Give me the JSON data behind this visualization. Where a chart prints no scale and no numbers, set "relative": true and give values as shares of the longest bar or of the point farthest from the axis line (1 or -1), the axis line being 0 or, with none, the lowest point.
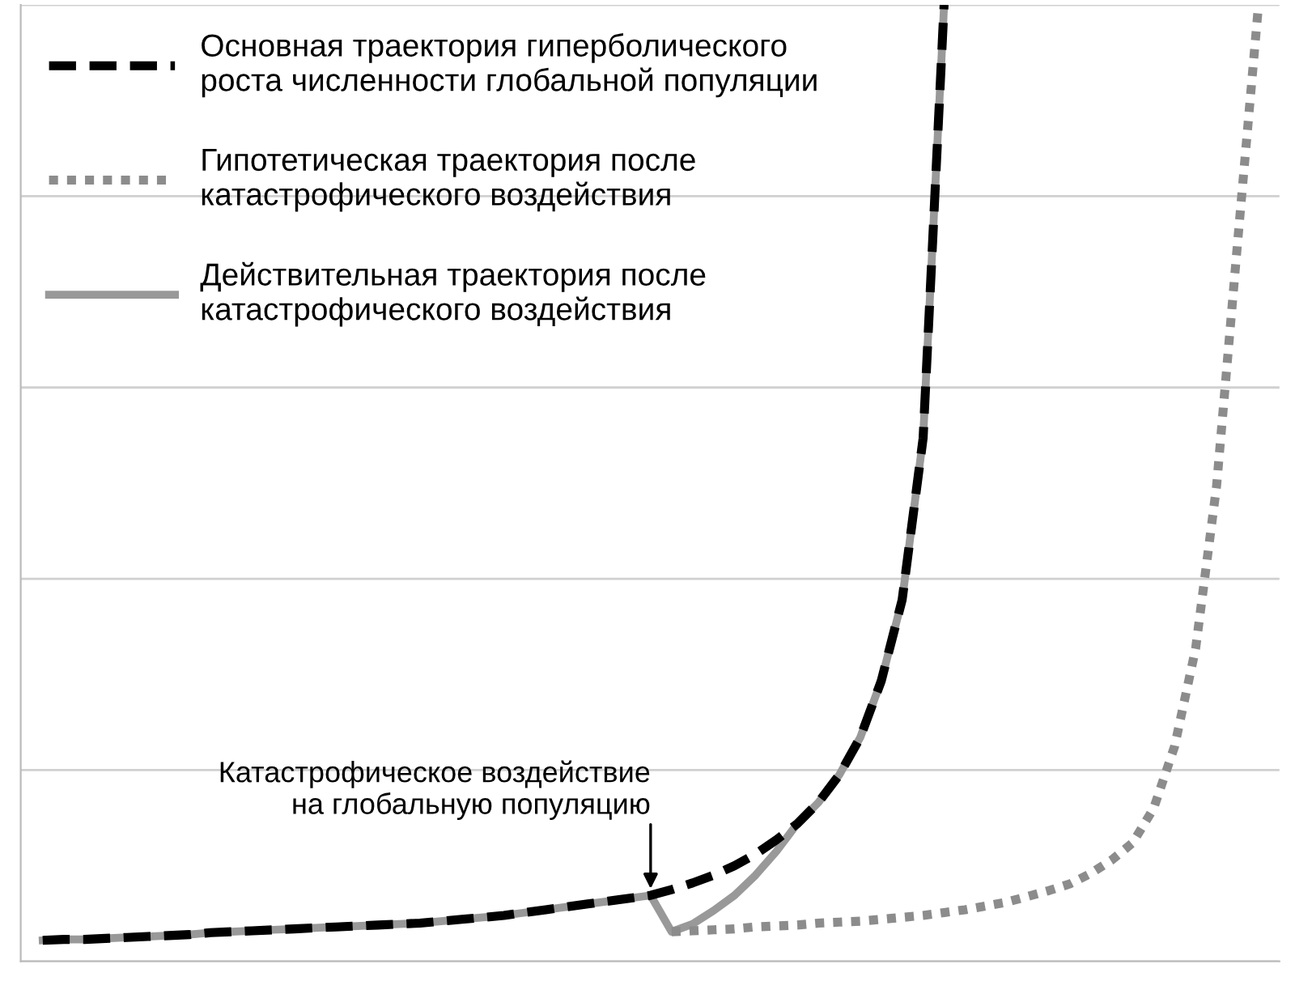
{
  "chart_data": {
    "type": "line",
    "relative": true,
    "grid": "y",
    "legend": "top left",
    "categories": [
      null,
      null,
      null,
      null,
      null,
      null,
      null,
      null,
      null,
      null,
      null,
      null,
      null,
      null,
      null,
      null,
      null,
      null,
      null,
      null,
      null,
      null,
      null,
      null,
      null,
      null,
      null,
      null,
      null,
      null,
      null,
      null,
      null,
      null,
      null,
      null,
      null,
      null,
      null,
      null,
      null,
      null,
      null,
      null,
      null,
      null,
      null,
      null,
      null,
      null,
      null,
      null,
      null,
      null,
      null,
      null,
      null,
      null,
      null,
      null,
      null
    ],
    "series": [
      {
        "name": "Действительная траектория после\nкатастрофического воздействия",
        "color": "#999999",
        "line_style": "solid",
        "values": [
          null,
          0.022,
          0.023,
          0.023,
          0.024,
          0.025,
          0.026,
          0.027,
          0.028,
          0.03,
          0.031,
          0.032,
          0.033,
          0.034,
          0.035,
          0.036,
          0.037,
          0.038,
          0.039,
          0.04,
          0.042,
          0.044,
          0.046,
          0.048,
          0.051,
          0.054,
          0.057,
          0.06,
          0.063,
          0.066,
          0.069,
          0.031,
          0.039,
          0.053,
          0.069,
          0.09,
          0.115,
          0.144,
          0.166,
          0.195,
          0.234,
          0.293,
          0.378,
          0.547,
          1.0,
          null,
          null,
          null,
          null,
          null,
          null,
          null,
          null,
          null,
          null,
          null,
          null,
          null,
          null,
          null,
          null
        ]
      },
      {
        "name": "Гипотетическая траектория после\nкатастрофического воздействия",
        "color": "#8c8c8c",
        "line_style": "dotted",
        "values": [
          null,
          null,
          null,
          null,
          null,
          null,
          null,
          null,
          null,
          null,
          null,
          null,
          null,
          null,
          null,
          null,
          null,
          null,
          null,
          null,
          null,
          null,
          null,
          null,
          null,
          null,
          null,
          null,
          null,
          null,
          null,
          0.031,
          0.032,
          0.033,
          0.034,
          0.036,
          0.037,
          0.038,
          0.04,
          0.041,
          0.042,
          0.044,
          0.046,
          0.048,
          0.051,
          0.054,
          0.058,
          0.062,
          0.068,
          0.074,
          0.081,
          0.092,
          0.106,
          0.124,
          0.16,
          0.225,
          0.327,
          0.497,
          0.751,
          1.0,
          null
        ]
      },
      {
        "name": "Основная траектория гиперболического\nроста численности глобальной популяции",
        "color": "#000000",
        "line_style": "dashed",
        "values": [
          null,
          0.022,
          0.023,
          0.023,
          0.024,
          0.025,
          0.026,
          0.027,
          0.028,
          0.03,
          0.031,
          0.032,
          0.033,
          0.034,
          0.035,
          0.036,
          0.037,
          0.038,
          0.039,
          0.04,
          0.042,
          0.044,
          0.046,
          0.048,
          0.051,
          0.054,
          0.057,
          0.06,
          0.063,
          0.066,
          0.069,
          0.075,
          0.082,
          0.09,
          0.1,
          0.112,
          0.127,
          0.144,
          0.166,
          0.195,
          0.234,
          0.293,
          0.378,
          0.547,
          1.0,
          null,
          null,
          null,
          null,
          null,
          null,
          null,
          null,
          null,
          null,
          null,
          null,
          null,
          null,
          null,
          null
        ]
      }
    ],
    "annotations": [
      "Катастрофическое воздействие\nна глобальную популяцию"
    ]
  }
}
